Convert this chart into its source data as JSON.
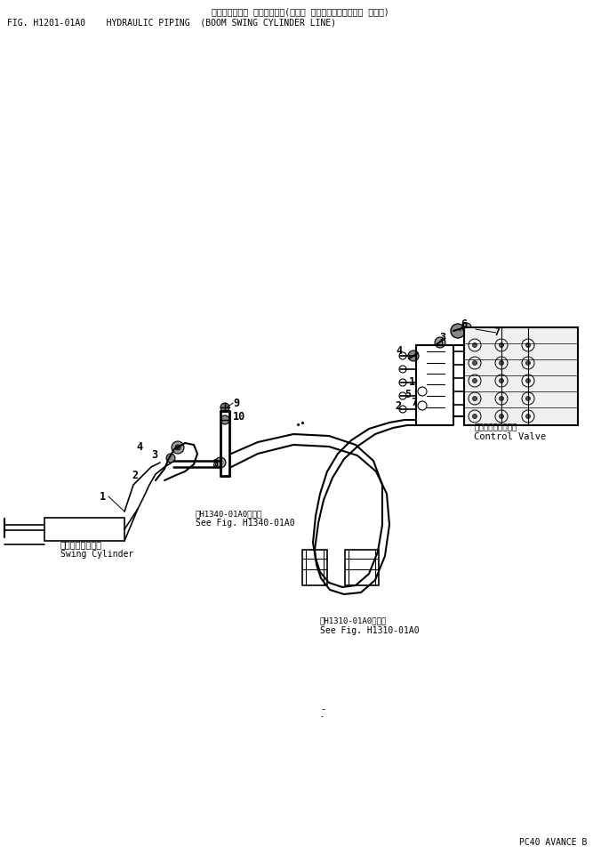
{
  "title_jp": "ハイドロリック パイピング　(ブーム スイング　シリンダー ライン)",
  "title_en": "FIG. H1201-01A0    HYDRAULIC PIPING  (BOOM SWING CYLINDER LINE)",
  "footer": "PC40 AVANCE B",
  "label_swing_jp": "スイングシリンダ",
  "label_swing_en": "Swing Cylinder",
  "label_cv_jp": "コントロールバルブ",
  "label_cv_en": "Control Valve",
  "ref1_jp": "置H1340-01A0図参照",
  "ref1_en": "See Fig. H1340-01A0",
  "ref2_jp": "置H1310-01A0図参照",
  "ref2_en": "See Fig. H1310-01A0",
  "bg": "#ffffff",
  "lc": "#000000"
}
